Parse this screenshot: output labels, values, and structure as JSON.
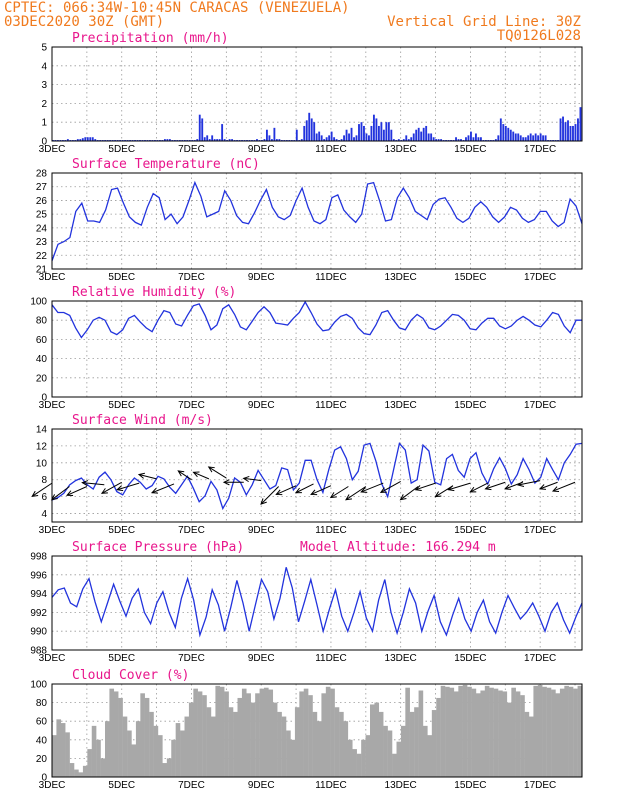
{
  "header": {
    "line1": "CPTEC:  066:34W-10:45N  CARACAS (VENEZUELA)",
    "line2": "03DEC2020 30Z (GMT)",
    "right1": "Vertical Grid Line: 30Z",
    "right2": "TQ0126L028"
  },
  "colors": {
    "header": "#f07a1e",
    "title": "#e8168c",
    "series": "#2233dd",
    "cloud": "#a8a8a8",
    "arrow": "#000000"
  },
  "chart_data": [
    {
      "type": "bar",
      "title": "Precipitation (mm/h)",
      "ylim": [
        0,
        5
      ],
      "yticks": [
        0,
        1,
        2,
        3,
        4,
        5
      ],
      "xlim": [
        0,
        15.2
      ],
      "xtick_labels": [
        "3DEC",
        "5DEC",
        "7DEC",
        "9DEC",
        "11DEC",
        "13DEC",
        "15DEC",
        "17DEC"
      ],
      "values": [
        0.05,
        0.05,
        0.05,
        0.05,
        0.05,
        0.05,
        0.1,
        0.05,
        0.05,
        0.05,
        0.1,
        0.1,
        0.15,
        0.2,
        0.2,
        0.2,
        0.2,
        0.1,
        0.05,
        0.05,
        0.05,
        0.05,
        0.05,
        0.05,
        0.05,
        0.05,
        0.05,
        0.05,
        0.05,
        0.05,
        0.05,
        0.05,
        0.05,
        0.05,
        0.05,
        0.05,
        0.05,
        0.05,
        0.05,
        0.05,
        0.05,
        0.05,
        0.05,
        0.05,
        0.05,
        0.1,
        0.1,
        0.1,
        0.05,
        0.05,
        0.05,
        0.05,
        0.05,
        0.05,
        0.05,
        0.05,
        0.05,
        0.05,
        0.1,
        1.4,
        1.2,
        0.2,
        0.3,
        0.1,
        0.3,
        0.1,
        0.1,
        0.1,
        0.9,
        0.1,
        0.05,
        0.1,
        0.1,
        0.05,
        0.05,
        0.05,
        0.05,
        0.05,
        0.05,
        0.05,
        0.05,
        0.05,
        0.1,
        0.05,
        0.05,
        0.1,
        0.6,
        0.3,
        0.1,
        0.7,
        0.1,
        0.1,
        0.05,
        0.05,
        0.05,
        0.05,
        0.05,
        0.05,
        0.6,
        0.05,
        0.1,
        0.8,
        1.1,
        1.5,
        1.2,
        1.0,
        0.4,
        0.5,
        0.3,
        0.1,
        0.2,
        0.3,
        0.5,
        0.2,
        0.1,
        0.05,
        0.1,
        0.3,
        0.6,
        0.4,
        0.7,
        0.2,
        0.3,
        0.9,
        1.0,
        0.8,
        0.4,
        0.3,
        0.8,
        1.4,
        1.2,
        0.8,
        1.0,
        0.6,
        1.0,
        1.0,
        0.6,
        0.1,
        0.05,
        0.1,
        0.05,
        0.1,
        0.3,
        0.1,
        0.2,
        0.4,
        0.6,
        0.7,
        0.5,
        0.7,
        0.8,
        0.4,
        0.4,
        0.2,
        0.1,
        0.1,
        0.1,
        0.05,
        0.05,
        0.05,
        0.05,
        0.05,
        0.2,
        0.1,
        0.1,
        0.05,
        0.2,
        0.3,
        0.5,
        0.2,
        0.4,
        0.2,
        0.2,
        0.05,
        0.05,
        0.05,
        0.05,
        0.05,
        0.1,
        0.3,
        1.2,
        0.9,
        0.8,
        0.7,
        0.6,
        0.5,
        0.4,
        0.4,
        0.3,
        0.2,
        0.2,
        0.3,
        0.4,
        0.3,
        0.4,
        0.3,
        0.4,
        0.3,
        0.3,
        0.05,
        0.05,
        0.05,
        0.05,
        0.05,
        1.2,
        1.3,
        1.0,
        1.1,
        0.8,
        0.8,
        0.9,
        1.2,
        1.8
      ]
    },
    {
      "type": "line",
      "title": "Surface Temperature (nC)",
      "ylim": [
        21,
        28
      ],
      "yticks": [
        21,
        22,
        23,
        24,
        25,
        26,
        27,
        28
      ],
      "xlim": [
        0,
        15.2
      ],
      "xtick_labels": [
        "3DEC",
        "5DEC",
        "7DEC",
        "9DEC",
        "11DEC",
        "13DEC",
        "15DEC",
        "17DEC"
      ],
      "values": [
        21.6,
        22.8,
        23.0,
        23.3,
        25.2,
        25.8,
        24.5,
        24.5,
        24.4,
        25.3,
        26.8,
        26.9,
        25.8,
        24.8,
        24.4,
        24.2,
        25.5,
        26.5,
        26.2,
        24.6,
        25.0,
        24.3,
        24.8,
        26.0,
        27.3,
        26.3,
        24.8,
        25.0,
        25.2,
        26.7,
        26.0,
        24.9,
        24.4,
        24.3,
        25.1,
        26.0,
        26.8,
        25.5,
        24.8,
        24.6,
        24.9,
        26.0,
        26.9,
        25.5,
        24.5,
        24.3,
        24.6,
        26.2,
        26.4,
        25.3,
        24.8,
        24.4,
        25.0,
        27.2,
        27.3,
        26.0,
        24.5,
        24.6,
        26.2,
        26.9,
        26.2,
        25.2,
        24.9,
        24.6,
        25.7,
        26.1,
        26.2,
        25.5,
        24.7,
        24.4,
        24.7,
        25.5,
        25.9,
        25.5,
        24.8,
        24.4,
        24.8,
        25.5,
        25.3,
        24.7,
        24.4,
        24.6,
        25.2,
        25.2,
        24.5,
        24.1,
        24.4,
        26.1,
        25.6,
        24.3
      ]
    },
    {
      "type": "line",
      "title": "Relative Humidity (%)",
      "ylim": [
        0,
        100
      ],
      "yticks": [
        0,
        20,
        40,
        60,
        80,
        100
      ],
      "xlim": [
        0,
        15.2
      ],
      "xtick_labels": [
        "3DEC",
        "5DEC",
        "7DEC",
        "9DEC",
        "11DEC",
        "13DEC",
        "15DEC",
        "17DEC"
      ],
      "values": [
        96,
        88,
        88,
        85,
        72,
        62,
        70,
        80,
        83,
        80,
        68,
        65,
        70,
        82,
        85,
        78,
        72,
        68,
        80,
        90,
        88,
        76,
        74,
        85,
        95,
        97,
        85,
        70,
        75,
        92,
        96,
        86,
        73,
        70,
        79,
        88,
        94,
        88,
        77,
        76,
        75,
        82,
        88,
        99,
        88,
        76,
        69,
        70,
        78,
        84,
        86,
        82,
        72,
        66,
        65,
        75,
        88,
        90,
        80,
        72,
        70,
        80,
        86,
        82,
        72,
        70,
        74,
        80,
        86,
        85,
        80,
        71,
        70,
        77,
        82,
        82,
        74,
        71,
        74,
        80,
        84,
        80,
        75,
        73,
        80,
        88,
        86,
        74,
        67,
        80,
        80
      ]
    },
    {
      "type": "line",
      "title": "Surface Wind (m/s)",
      "ylim": [
        3,
        14
      ],
      "yticks": [
        4,
        6,
        8,
        10,
        12,
        14
      ],
      "xlim": [
        0,
        15.2
      ],
      "xtick_labels": [
        "3DEC",
        "5DEC",
        "7DEC",
        "9DEC",
        "11DEC",
        "13DEC",
        "15DEC",
        "17DEC"
      ],
      "values": [
        5.6,
        5.9,
        6.4,
        7.4,
        7.9,
        8.2,
        7.4,
        6.9,
        8.3,
        8.9,
        8.0,
        6.6,
        6.2,
        7.4,
        8.2,
        7.7,
        6.9,
        7.3,
        8.4,
        8.1,
        7.1,
        6.4,
        7.4,
        8.4,
        7.0,
        5.4,
        6.1,
        7.8,
        6.8,
        4.6,
        5.8,
        8.2,
        7.7,
        6.2,
        7.4,
        9.1,
        8.0,
        6.9,
        7.3,
        9.4,
        9.2,
        6.8,
        7.6,
        10.3,
        10.3,
        8.0,
        6.5,
        9.2,
        11.5,
        11.9,
        10.5,
        8.0,
        9.0,
        12.1,
        12.3,
        10.2,
        7.5,
        6.0,
        9.2,
        12.3,
        11.5,
        7.6,
        8.0,
        12.1,
        11.4,
        7.7,
        7.4,
        10.5,
        11.0,
        9.1,
        8.3,
        10.5,
        11.2,
        8.8,
        7.5,
        9.3,
        10.6,
        9.3,
        7.5,
        8.6,
        10.5,
        9.2,
        7.6,
        8.3,
        10.5,
        9.2,
        8.0,
        10.0,
        11.0,
        12.2,
        12.3
      ]
    },
    {
      "type": "line",
      "title": "Surface Pressure (hPa)",
      "annotation": "Model Altitude: 166.294 m",
      "ylim": [
        988,
        998
      ],
      "yticks": [
        988,
        990,
        992,
        994,
        996,
        998
      ],
      "xlim": [
        0,
        15.2
      ],
      "xtick_labels": [
        "3DEC",
        "5DEC",
        "7DEC",
        "9DEC",
        "11DEC",
        "13DEC",
        "15DEC",
        "17DEC"
      ],
      "values": [
        993.6,
        994.4,
        994.6,
        993.0,
        992.6,
        994.5,
        995.6,
        993.1,
        991.0,
        993.0,
        995.0,
        993.2,
        991.6,
        993.5,
        994.5,
        992.0,
        990.8,
        993.0,
        994.2,
        992.0,
        990.4,
        993.5,
        995.6,
        993.3,
        989.6,
        991.5,
        994.4,
        992.8,
        990.0,
        992.5,
        995.4,
        993.0,
        990.0,
        992.8,
        995.5,
        994.2,
        991.3,
        993.5,
        996.8,
        994.6,
        991.0,
        993.2,
        995.5,
        992.8,
        990.0,
        992.3,
        994.4,
        991.6,
        990.0,
        992.0,
        994.2,
        991.4,
        990.0,
        993.3,
        995.5,
        992.0,
        989.8,
        992.0,
        994.5,
        993.0,
        990.0,
        992.1,
        993.8,
        991.0,
        989.6,
        991.7,
        993.5,
        991.3,
        990.0,
        992.0,
        993.3,
        991.0,
        989.8,
        992.0,
        993.8,
        992.5,
        991.3,
        992.0,
        993.0,
        991.6,
        990.0,
        992.0,
        993.0,
        991.2,
        989.8,
        991.5,
        993.0
      ]
    },
    {
      "type": "bar",
      "title": "Cloud Cover (%)",
      "ylim": [
        0,
        100
      ],
      "yticks": [
        0,
        20,
        40,
        60,
        80,
        100
      ],
      "xlim": [
        0,
        15.2
      ],
      "xtick_labels": [
        "3DEC",
        "5DEC",
        "7DEC",
        "9DEC",
        "11DEC",
        "13DEC",
        "15DEC",
        "17DEC"
      ],
      "values": [
        45,
        62,
        58,
        48,
        15,
        8,
        5,
        12,
        30,
        55,
        40,
        20,
        60,
        95,
        92,
        85,
        65,
        50,
        35,
        60,
        90,
        85,
        70,
        55,
        45,
        15,
        20,
        40,
        58,
        50,
        65,
        80,
        95,
        92,
        88,
        75,
        65,
        98,
        97,
        92,
        75,
        70,
        85,
        95,
        90,
        80,
        90,
        95,
        96,
        94,
        80,
        70,
        65,
        50,
        40,
        75,
        92,
        95,
        88,
        70,
        60,
        90,
        97,
        95,
        75,
        70,
        60,
        40,
        30,
        25,
        40,
        45,
        78,
        80,
        70,
        55,
        50,
        25,
        38,
        55,
        96,
        70,
        75,
        93,
        55,
        45,
        72,
        85,
        98,
        97,
        96,
        92,
        98,
        99,
        97,
        95,
        90,
        93,
        98,
        96,
        95,
        93,
        92,
        80,
        96,
        92,
        88,
        70,
        65,
        98,
        99,
        97,
        96,
        94,
        90,
        95,
        98,
        97,
        95,
        98
      ]
    },
    {
      "type": "scatter",
      "title": "Surface Wind vectors",
      "xlim": [
        0,
        15.2
      ],
      "x": [
        0.0,
        0.5,
        1.0,
        1.5,
        2.0,
        2.5,
        3.0,
        3.5,
        4.0,
        4.5,
        5.0,
        5.5,
        6.0,
        6.5,
        7.0,
        7.5,
        8.0,
        8.5,
        9.0,
        9.5,
        10.0,
        10.5,
        11.0,
        11.5,
        12.0,
        12.5,
        13.0,
        13.5,
        14.0,
        14.5,
        15.0
      ],
      "y": [
        7.6,
        7.2,
        7.2,
        7.4,
        7.7,
        7.6,
        8.1,
        7.5,
        8.0,
        8.1,
        8.2,
        7.7,
        7.9,
        7.2,
        7.3,
        7.5,
        7.3,
        7.2,
        7.2,
        7.6,
        7.8,
        7.2,
        7.6,
        7.3,
        7.6,
        7.6,
        7.7,
        7.7,
        7.9,
        7.7,
        7.7
      ],
      "u": [
        -0.9,
        -0.8,
        -0.9,
        -1.0,
        -0.9,
        -1.0,
        -0.8,
        -1.0,
        -0.6,
        -0.7,
        -0.8,
        -0.9,
        -0.8,
        -0.8,
        -0.9,
        -0.8,
        -0.9,
        -0.8,
        -0.9,
        -1.0,
        -0.9,
        -0.8,
        -0.9,
        -0.8,
        -1.0,
        -0.8,
        -0.9,
        -0.8,
        -1.0,
        -0.8,
        -1.0
      ],
      "v": [
        -0.6,
        -0.6,
        -0.4,
        0.1,
        -0.5,
        -0.3,
        0.2,
        -0.4,
        0.4,
        0.3,
        0.5,
        0.0,
        0.1,
        -0.8,
        -0.4,
        -0.4,
        -0.4,
        -0.5,
        -0.6,
        -0.4,
        -0.5,
        -0.6,
        -0.3,
        -0.5,
        -0.3,
        -0.4,
        -0.3,
        -0.3,
        -0.2,
        -0.3,
        -0.4
      ]
    }
  ]
}
